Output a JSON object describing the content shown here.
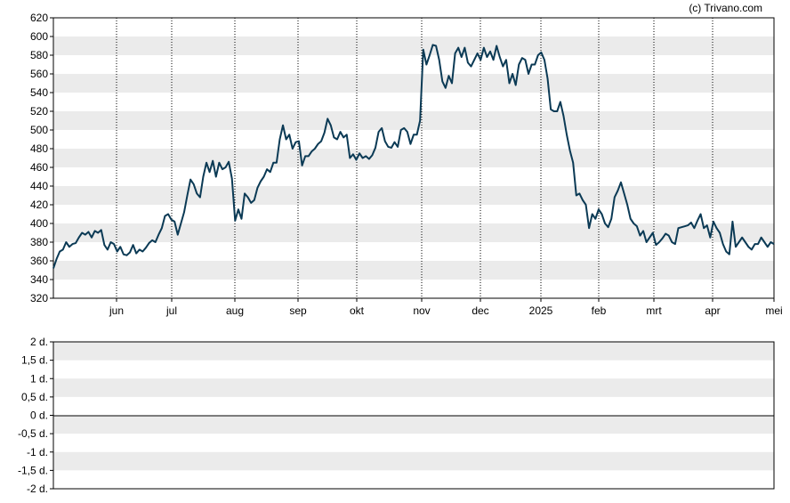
{
  "credit": "(c) Trivano.com",
  "colors": {
    "line": "#0b3a55",
    "band": "#ebebeb",
    "axis": "#000000",
    "background": "#ffffff"
  },
  "chart_data": [
    {
      "type": "line",
      "title": "",
      "xlabel": "",
      "ylabel": "",
      "ylim": [
        320,
        620
      ],
      "yticks": [
        "320",
        "340",
        "360",
        "380",
        "400",
        "420",
        "440",
        "460",
        "480",
        "500",
        "520",
        "540",
        "560",
        "580",
        "600",
        "620"
      ],
      "xticks": [
        "jun",
        "jul",
        "aug",
        "sep",
        "okt",
        "nov",
        "dec",
        "2025",
        "feb",
        "mrt",
        "apr",
        "mei"
      ],
      "grid": "horizontal alternating bands, vertical dotted lines at month starts",
      "series": [
        {
          "values": [
            352,
            362,
            370,
            372,
            380,
            375,
            378,
            379,
            385,
            390,
            388,
            391,
            385,
            392,
            390,
            393,
            377,
            372,
            380,
            378,
            370,
            375,
            367,
            366,
            369,
            377,
            368,
            372,
            370,
            374,
            379,
            382,
            380,
            388,
            395,
            408,
            410,
            404,
            402,
            388,
            400,
            412,
            430,
            447,
            442,
            432,
            428,
            450,
            465,
            455,
            467,
            450,
            465,
            458,
            460,
            466,
            448,
            403,
            415,
            405,
            432,
            428,
            422,
            425,
            438,
            445,
            450,
            458,
            455,
            465,
            465,
            490,
            505,
            490,
            495,
            480,
            487,
            488,
            462,
            472,
            472,
            477,
            480,
            485,
            488,
            497,
            512,
            505,
            492,
            490,
            498,
            492,
            495,
            470,
            474,
            468,
            475,
            470,
            472,
            469,
            473,
            481,
            498,
            502,
            488,
            482,
            481,
            487,
            482,
            500,
            502,
            498,
            485,
            495,
            495,
            510,
            586,
            570,
            580,
            591,
            590,
            575,
            552,
            545,
            558,
            550,
            582,
            588,
            578,
            588,
            572,
            568,
            575,
            582,
            575,
            588,
            578,
            584,
            575,
            590,
            578,
            568,
            575,
            550,
            560,
            548,
            570,
            577,
            575,
            560,
            570,
            570,
            580,
            583,
            575,
            555,
            522,
            520,
            520,
            530,
            515,
            495,
            478,
            465,
            430,
            432,
            425,
            420,
            395,
            410,
            405,
            415,
            410,
            400,
            396,
            405,
            428,
            435,
            444,
            432,
            420,
            405,
            400,
            397,
            387,
            392,
            380,
            385,
            390,
            377,
            380,
            384,
            389,
            387,
            380,
            378,
            395,
            396,
            397,
            398,
            401,
            395,
            403,
            410,
            395,
            398,
            385,
            402,
            395,
            390,
            378,
            370,
            367,
            402,
            375,
            380,
            385,
            380,
            375,
            372,
            378,
            378,
            385,
            380,
            375,
            380,
            378
          ]
        }
      ]
    },
    {
      "type": "line",
      "title": "",
      "xlabel": "",
      "ylabel": "",
      "ylim": [
        -2,
        2
      ],
      "yticks": [
        "2 d.",
        "1,5 d.",
        "1 d.",
        "0,5 d.",
        "0 d.",
        "-0,5 d.",
        "-1 d.",
        "-1,5 d.",
        "-2 d."
      ],
      "grid": "horizontal alternating bands",
      "series": []
    }
  ]
}
